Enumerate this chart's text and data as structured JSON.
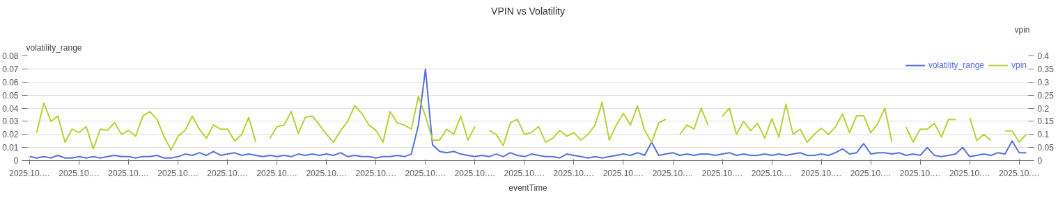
{
  "chart_data": {
    "type": "line",
    "title": "VPIN vs Volatility",
    "xlabel": "eventTime",
    "ylabel": "volatility_range",
    "y2label": "vpin",
    "categories": [
      "2025.10.…",
      null,
      null,
      null,
      null,
      null,
      null,
      "2025.10.…",
      null,
      null,
      null,
      null,
      null,
      null,
      "2025.10.…",
      null,
      null,
      null,
      null,
      null,
      null,
      "2025.10.…",
      null,
      null,
      null,
      null,
      null,
      null,
      "2025.10.…",
      null,
      null,
      null,
      null,
      null,
      null,
      "2025.10.…",
      null,
      null,
      null,
      null,
      null,
      null,
      "2025.10.…",
      null,
      null,
      null,
      null,
      null,
      null,
      "2025.10.…",
      null,
      null,
      null,
      null,
      null,
      null,
      "2025.10.…",
      null,
      null,
      null,
      null,
      null,
      null,
      "2025.10.…",
      null,
      null,
      null,
      null,
      null,
      null,
      "2025.10.…",
      null,
      null,
      null,
      null,
      null,
      null,
      "2025.10.…",
      null,
      null,
      null,
      null,
      null,
      null,
      "2025.10.…",
      null,
      null,
      null,
      null,
      null,
      null,
      "2025.10.…",
      null,
      null,
      null,
      null,
      null,
      null,
      "2025.10.…",
      null,
      null,
      null,
      null,
      null,
      null,
      "2025.10.…",
      null,
      null,
      null,
      null,
      null,
      null,
      "2025.10.…",
      null,
      null,
      null,
      null,
      null,
      null,
      "2025.10.…",
      null,
      null,
      null,
      null,
      null,
      null,
      "2025.10.…",
      null,
      null,
      null,
      null,
      null,
      null,
      "2025.10.…",
      null,
      null,
      null,
      null,
      null,
      null,
      "2025.10.…",
      null
    ],
    "series": [
      {
        "name": "volatility_range",
        "color": "#5470e0",
        "values": [
          0.003,
          0.002,
          0.003,
          0.002,
          0.004,
          0.002,
          0.002,
          0.003,
          0.002,
          0.003,
          0.002,
          0.003,
          0.004,
          0.003,
          0.003,
          0.002,
          0.003,
          0.003,
          0.004,
          0.002,
          0.002,
          0.003,
          0.005,
          0.004,
          0.006,
          0.004,
          0.007,
          0.004,
          0.005,
          0.006,
          0.004,
          0.005,
          0.004,
          0.003,
          0.004,
          0.003,
          0.004,
          0.003,
          0.005,
          0.004,
          0.005,
          0.004,
          0.005,
          0.004,
          0.006,
          0.003,
          0.004,
          0.003,
          0.003,
          0.002,
          0.003,
          0.003,
          0.004,
          0.003,
          0.005,
          0.027,
          0.07,
          0.012,
          0.007,
          0.006,
          0.007,
          0.005,
          0.004,
          0.003,
          0.004,
          0.003,
          0.005,
          0.003,
          0.006,
          0.004,
          0.003,
          0.005,
          0.004,
          0.003,
          0.003,
          0.002,
          0.005,
          0.004,
          0.003,
          0.002,
          0.003,
          0.002,
          0.003,
          0.004,
          0.005,
          0.004,
          0.006,
          0.004,
          0.014,
          0.004,
          0.005,
          0.006,
          0.004,
          0.005,
          0.004,
          0.005,
          0.005,
          0.004,
          0.005,
          0.006,
          0.004,
          0.005,
          0.004,
          0.004,
          0.005,
          0.004,
          0.005,
          0.004,
          0.005,
          0.006,
          0.004,
          0.004,
          0.005,
          0.004,
          0.006,
          0.009,
          0.005,
          0.006,
          0.013,
          0.005,
          0.006,
          0.006,
          0.005,
          0.006,
          0.004,
          0.005,
          0.004,
          0.01,
          0.004,
          0.003,
          0.004,
          0.005,
          0.01,
          0.003,
          0.004,
          0.005,
          0.004,
          0.006,
          0.005,
          0.015,
          0.006,
          0.006
        ]
      },
      {
        "name": "vpin",
        "color": "#b5d334",
        "axis": "y2",
        "values": [
          null,
          0.107,
          0.22,
          0.15,
          0.17,
          0.07,
          0.12,
          0.107,
          0.13,
          0.045,
          0.12,
          0.115,
          0.145,
          0.1,
          0.115,
          0.093,
          0.17,
          0.187,
          0.158,
          0.093,
          0.04,
          0.093,
          0.115,
          0.17,
          0.12,
          0.085,
          0.136,
          0.12,
          0.12,
          0.075,
          0.1,
          0.165,
          0.07,
          null,
          0.085,
          0.13,
          0.136,
          0.187,
          0.104,
          0.165,
          0.17,
          0.136,
          0.1,
          0.07,
          0.115,
          0.15,
          0.21,
          0.18,
          0.136,
          0.115,
          0.07,
          0.187,
          0.144,
          0.136,
          0.12,
          0.245,
          0.17,
          0.078,
          0.078,
          0.12,
          0.1,
          0.17,
          0.078,
          0.13,
          null,
          0.115,
          0.1,
          0.057,
          0.144,
          0.158,
          0.1,
          0.107,
          0.13,
          0.07,
          0.085,
          0.115,
          0.093,
          0.107,
          0.078,
          0.1,
          0.136,
          0.223,
          0.078,
          0.136,
          0.18,
          0.136,
          0.209,
          0.115,
          0.07,
          0.144,
          0.158,
          null,
          0.1,
          0.136,
          0.12,
          0.2,
          0.135,
          null,
          0.17,
          0.2,
          0.1,
          0.15,
          0.115,
          0.142,
          0.085,
          0.16,
          0.09,
          0.215,
          0.1,
          0.12,
          0.07,
          0.1,
          0.124,
          0.1,
          0.128,
          0.178,
          0.106,
          0.171,
          0.171,
          0.106,
          0.142,
          0.2,
          0.07,
          null,
          0.128,
          0.07,
          0.12,
          0.12,
          0.142,
          0.09,
          0.157,
          0.157,
          null,
          0.164,
          0.077,
          0.1,
          0.077,
          null,
          0.113,
          0.113,
          0.07,
          0.1
        ]
      }
    ],
    "ylim": [
      0,
      0.08
    ],
    "yticks": [
      0,
      0.01,
      0.02,
      0.03,
      0.04,
      0.05,
      0.06,
      0.07,
      0.08
    ],
    "y2lim": [
      0,
      0.4
    ],
    "y2ticks": [
      0,
      0.05,
      0.1,
      0.15,
      0.2,
      0.25,
      0.3,
      0.35,
      0.4
    ],
    "grid": "y",
    "legend": "top right"
  }
}
